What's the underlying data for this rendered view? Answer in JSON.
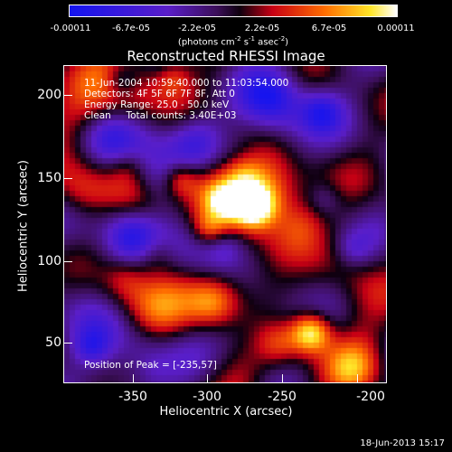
{
  "colorbar": {
    "tick_labels": [
      "-0.00011",
      "-6.7e-05",
      "-2.2e-05",
      "2.2e-05",
      "6.7e-05",
      "0.00011"
    ],
    "units_prefix": "(photons cm",
    "units_sup1": "-2",
    "units_mid": " s",
    "units_sup2": "-1",
    "units_mid2": " asec",
    "units_sup3": "-2",
    "units_suffix": ")"
  },
  "title": "Reconstructed RHESSI Image",
  "info": {
    "time_range": "11-Jun-2004 10:59:40.000 to 11:03:54.000",
    "detectors": "Detectors: 4F 5F 6F 7F 8F, Att 0",
    "energy_range": "Energy Range: 25.0 - 50.0 keV",
    "clean_counts": "Clean     Total counts: 3.40E+03",
    "peak": "Position of Peak = [-235,57]"
  },
  "axes": {
    "x_ticks": [
      "-350",
      "-300",
      "-250",
      "-200"
    ],
    "y_ticks": [
      "200",
      "150",
      "100",
      "50"
    ],
    "xlabel": "Heliocentric X (arcsec)",
    "ylabel": "Heliocentric Y (arcsec)"
  },
  "footer": {
    "datestamp": "18-Jun-2013 15:17"
  }
}
